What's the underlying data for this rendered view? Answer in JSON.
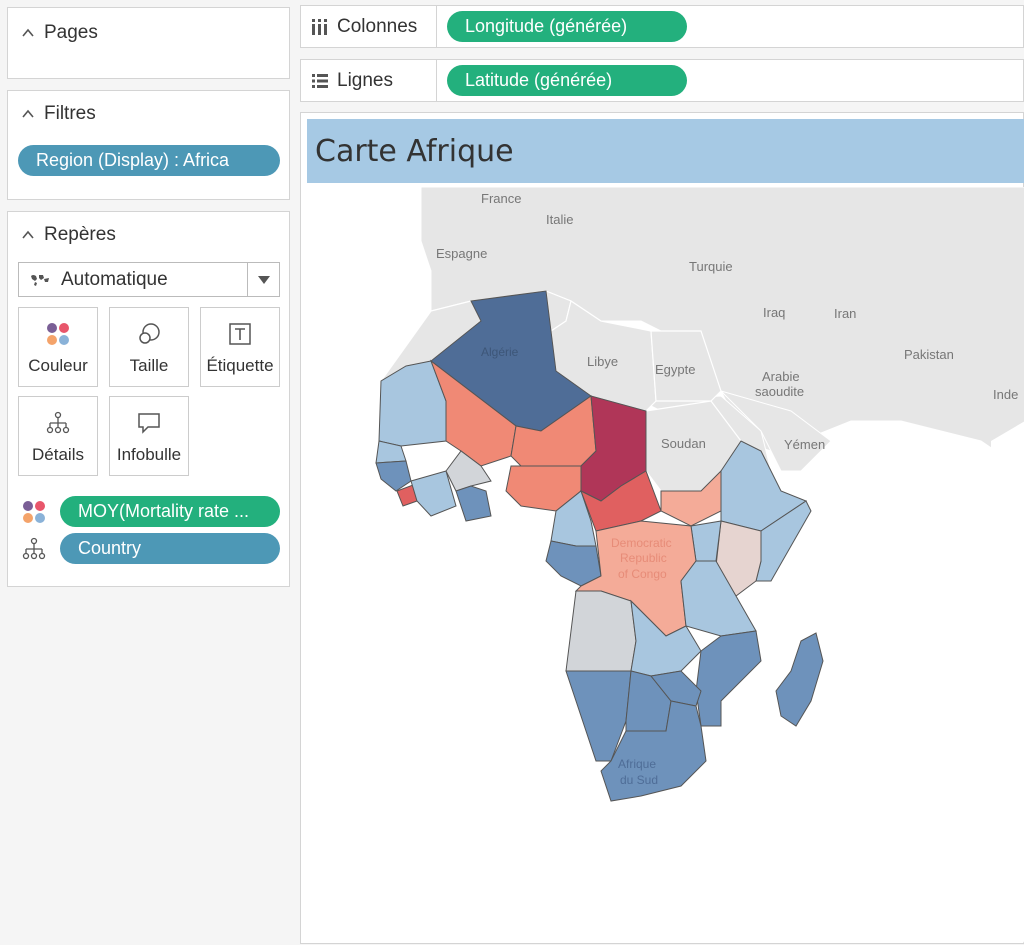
{
  "panels": {
    "pages": {
      "title": "Pages"
    },
    "filters": {
      "title": "Filtres",
      "pill": "Region (Display) : Africa"
    },
    "marks": {
      "title": "Repères",
      "mark_type": "Automatique",
      "buttons": {
        "color": "Couleur",
        "size": "Taille",
        "label": "Étiquette",
        "detail": "Détails",
        "tooltip": "Infobulle"
      },
      "fields": {
        "color_field": "MOY(Mortality rate ...",
        "detail_field": "Country"
      }
    }
  },
  "shelves": {
    "columns": {
      "label": "Colonnes",
      "pill": "Longitude (générée)"
    },
    "rows": {
      "label": "Lignes",
      "pill": "Latitude (générée)"
    }
  },
  "view": {
    "title": "Carte Afrique",
    "map_labels": {
      "france": "France",
      "italie": "Italie",
      "espagne": "Espagne",
      "turquie": "Turquie",
      "iraq": "Iraq",
      "iran": "Iran",
      "pakistan": "Pakistan",
      "inde": "Inde",
      "libye": "Libye",
      "egypte": "Egypte",
      "arabie1": "Arabie",
      "arabie2": "saoudite",
      "soudan": "Soudan",
      "yemen": "Yémen",
      "algerie": "Algérie",
      "drc1": "Democratic",
      "drc2": "Republic",
      "drc3": "of Congo",
      "afsud1": "Afrique",
      "afsud2": "du Sud"
    }
  },
  "colors": {
    "dark_blue": "#4f6d97",
    "mid_blue": "#6e92bb",
    "light_blue": "#a8c6df",
    "pale_blue": "#c5d6e6",
    "grey": "#d2d5d9",
    "pale_pink": "#e6d4d0",
    "salmon": "#f4ab98",
    "coral": "#f08975",
    "red": "#e06060",
    "crimson": "#b03658",
    "land_grey": "#e6e6e6",
    "pill_blue": "#4d98b6",
    "pill_green": "#23b07d",
    "title_bar": "#a6c9e4"
  }
}
